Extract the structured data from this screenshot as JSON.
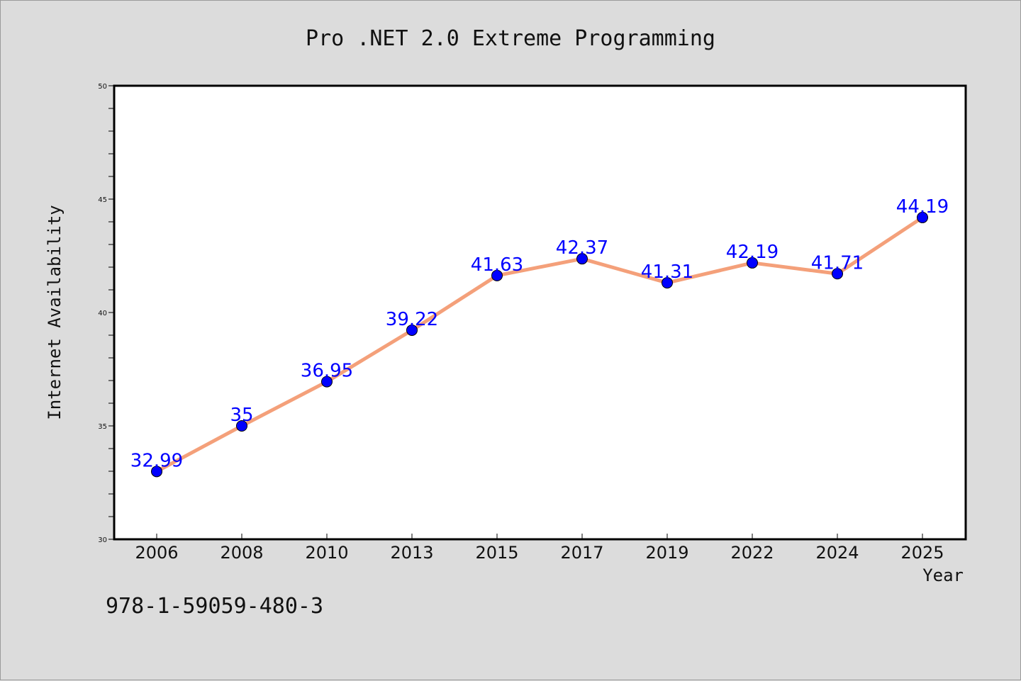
{
  "chart_data": {
    "type": "line",
    "title": "Pro .NET 2.0 Extreme Programming",
    "xlabel": "Year",
    "ylabel": "Internet Availability",
    "categories": [
      "2006",
      "2008",
      "2010",
      "2013",
      "2015",
      "2017",
      "2019",
      "2022",
      "2024",
      "2025"
    ],
    "values": [
      32.99,
      35,
      36.95,
      39.22,
      41.63,
      42.37,
      41.31,
      42.19,
      41.71,
      44.19
    ],
    "data_labels": [
      "32.99",
      "35",
      "36.95",
      "39.22",
      "41.63",
      "42.37",
      "41.31",
      "42.19",
      "41.71",
      "44.19"
    ],
    "ylim": [
      30,
      50
    ],
    "yticks": [
      "30",
      "35",
      "40",
      "45",
      "50"
    ],
    "grid": false,
    "legend": "none",
    "footnote": "978-1-59059-480-3",
    "colors": {
      "line": "#f4a07a",
      "marker": "#0000ff",
      "data_label": "#0000ff",
      "background": "#dcdcdc",
      "plot_area": "#ffffff"
    }
  }
}
